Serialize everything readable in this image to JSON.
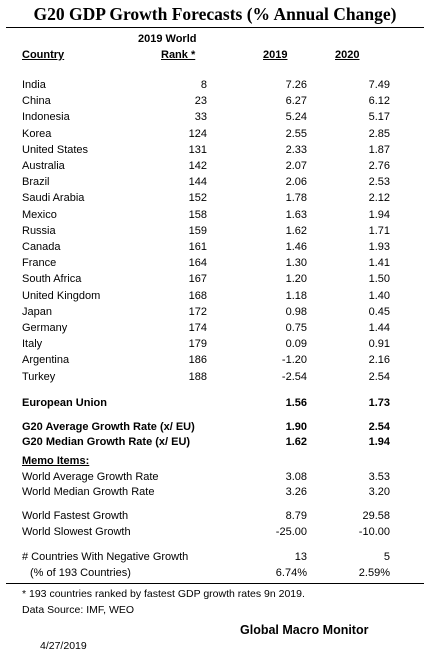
{
  "title": "G20 GDP Growth Forecasts  (% Annual Change)",
  "headers": {
    "rank_line1": "2019 World",
    "country": "Country",
    "rank": "Rank *",
    "y2019": "2019",
    "y2020": "2020"
  },
  "countries": [
    {
      "name": "India",
      "rank": "8",
      "v2019": "7.26",
      "v2020": "7.49"
    },
    {
      "name": "China",
      "rank": "23",
      "v2019": "6.27",
      "v2020": "6.12"
    },
    {
      "name": "Indonesia",
      "rank": "33",
      "v2019": "5.24",
      "v2020": "5.17"
    },
    {
      "name": "Korea",
      "rank": "124",
      "v2019": "2.55",
      "v2020": "2.85"
    },
    {
      "name": "United States",
      "rank": "131",
      "v2019": "2.33",
      "v2020": "1.87"
    },
    {
      "name": "Australia",
      "rank": "142",
      "v2019": "2.07",
      "v2020": "2.76"
    },
    {
      "name": "Brazil",
      "rank": "144",
      "v2019": "2.06",
      "v2020": "2.53"
    },
    {
      "name": "Saudi Arabia",
      "rank": "152",
      "v2019": "1.78",
      "v2020": "2.12"
    },
    {
      "name": "Mexico",
      "rank": "158",
      "v2019": "1.63",
      "v2020": "1.94"
    },
    {
      "name": "Russia",
      "rank": "159",
      "v2019": "1.62",
      "v2020": "1.71"
    },
    {
      "name": "Canada",
      "rank": "161",
      "v2019": "1.46",
      "v2020": "1.93"
    },
    {
      "name": "France",
      "rank": "164",
      "v2019": "1.30",
      "v2020": "1.41"
    },
    {
      "name": "South Africa",
      "rank": "167",
      "v2019": "1.20",
      "v2020": "1.50"
    },
    {
      "name": "United Kingdom",
      "rank": "168",
      "v2019": "1.18",
      "v2020": "1.40"
    },
    {
      "name": "Japan",
      "rank": "172",
      "v2019": "0.98",
      "v2020": "0.45"
    },
    {
      "name": "Germany",
      "rank": "174",
      "v2019": "0.75",
      "v2020": "1.44"
    },
    {
      "name": "Italy",
      "rank": "179",
      "v2019": "0.09",
      "v2020": "0.91"
    },
    {
      "name": "Argentina",
      "rank": "186",
      "v2019": "-1.20",
      "v2020": "2.16"
    },
    {
      "name": "Turkey",
      "rank": "188",
      "v2019": "-2.54",
      "v2020": "2.54"
    }
  ],
  "eu": {
    "name": "European Union",
    "v2019": "1.56",
    "v2020": "1.73"
  },
  "g20_avg": {
    "name": "G20 Average Growth Rate (x/ EU)",
    "v2019": "1.90",
    "v2020": "2.54"
  },
  "g20_median": {
    "name": "G20 Median Growth Rate (x/ EU)",
    "v2019": "1.62",
    "v2020": "1.94"
  },
  "memo_label": "Memo Items:",
  "world_avg": {
    "name": "World Average Growth Rate",
    "v2019": "3.08",
    "v2020": "3.53"
  },
  "world_median": {
    "name": "World Median Growth Rate",
    "v2019": "3.26",
    "v2020": "3.20"
  },
  "world_fastest": {
    "name": "World Fastest Growth",
    "v2019": "8.79",
    "v2020": "29.58"
  },
  "world_slowest": {
    "name": "World Slowest Growth",
    "v2019": "-25.00",
    "v2020": "-10.00"
  },
  "negative": {
    "name": "# Countries With Negative Growth",
    "v2019": "13",
    "v2020": "5"
  },
  "negative_pct": {
    "name": "(% of 193 Countries)",
    "v2019": "6.74%",
    "v2020": "2.59%"
  },
  "footnote": "* 193 countries ranked by fastest GDP growth rates 9n 2019.",
  "source": "Data Source:  IMF, WEO",
  "brand": "Global Macro Monitor",
  "date": "4/27/2019"
}
